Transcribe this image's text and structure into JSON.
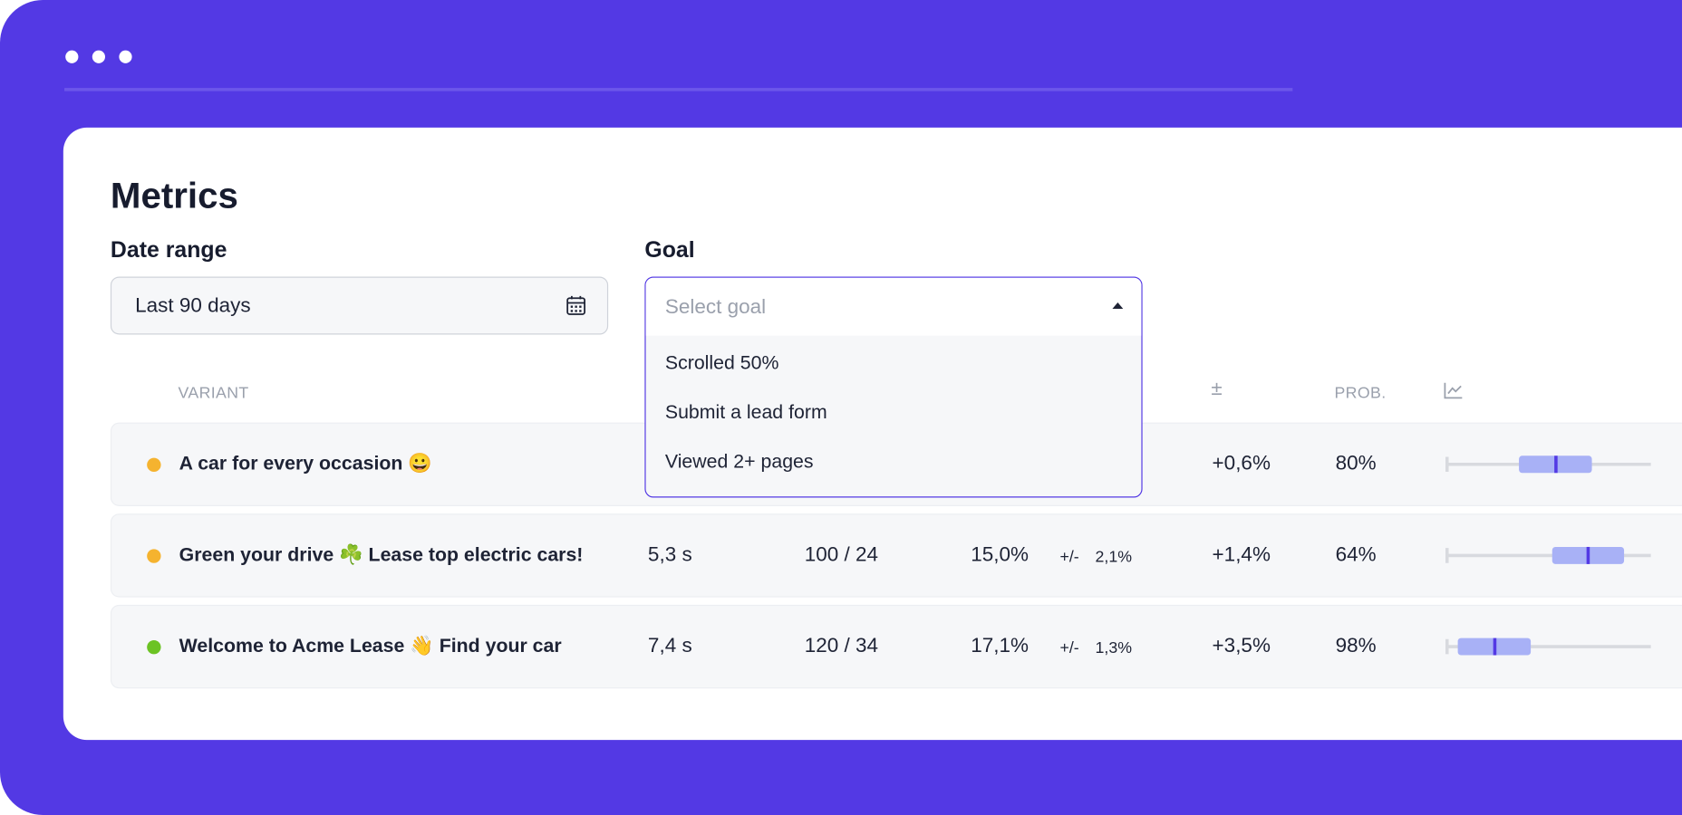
{
  "page": {
    "title": "Metrics"
  },
  "filters": {
    "date_range": {
      "label": "Date range",
      "value": "Last 90 days"
    },
    "goal": {
      "label": "Goal",
      "placeholder": "Select goal",
      "options": [
        "Scrolled 50%",
        "Submit a lead form",
        "Viewed 2+ pages"
      ]
    }
  },
  "table": {
    "columns": {
      "variant": "VARIANT",
      "lift": "±",
      "prob": "PROB."
    },
    "rows": [
      {
        "name": "A car for every occasion 😀",
        "status_color": "#f5b32f",
        "lift": "+0,6%",
        "prob": "80%"
      },
      {
        "name": "Green your drive ☘️ Lease top electric cars!",
        "status_color": "#f5b32f",
        "time": "5,3 s",
        "visitors": "100 / 24",
        "rate": "15,0%",
        "ci_prefix": "+/-",
        "ci": "2,1%",
        "lift": "+1,4%",
        "prob": "64%"
      },
      {
        "name": "Welcome to Acme Lease 👋 Find your car",
        "status_color": "#6cc324",
        "time": "7,4 s",
        "visitors": "120 / 34",
        "rate": "17,1%",
        "ci_prefix": "+/-",
        "ci": "1,3%",
        "lift": "+3,5%",
        "prob": "98%"
      }
    ]
  }
}
